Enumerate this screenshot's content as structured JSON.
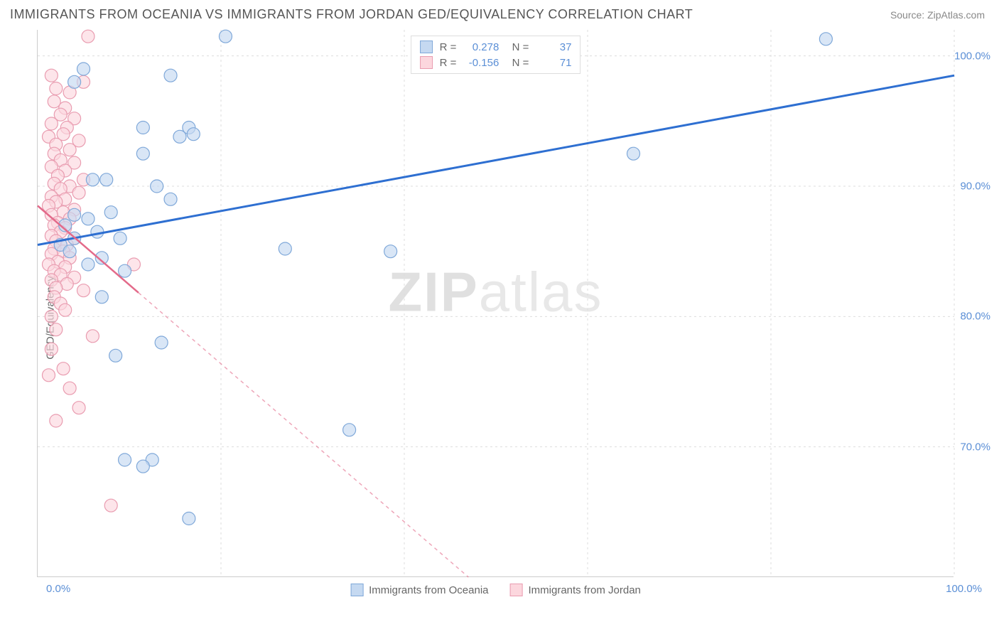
{
  "title": "IMMIGRANTS FROM OCEANIA VS IMMIGRANTS FROM JORDAN GED/EQUIVALENCY CORRELATION CHART",
  "source_label": "Source: ZipAtlas.com",
  "watermark": {
    "zip": "ZIP",
    "atlas": "atlas"
  },
  "chart": {
    "type": "scatter",
    "ylabel": "GED/Equivalency",
    "xlim": [
      0,
      100
    ],
    "ylim": [
      60,
      102
    ],
    "x_ticks": [
      "0.0%",
      "100.0%"
    ],
    "y_ticks": [
      {
        "value": 100,
        "label": "100.0%"
      },
      {
        "value": 90,
        "label": "90.0%"
      },
      {
        "value": 80,
        "label": "80.0%"
      },
      {
        "value": 70,
        "label": "70.0%"
      }
    ],
    "x_gridlines": [
      20,
      40,
      60,
      80,
      100
    ],
    "y_gridlines": [
      70,
      80,
      90,
      100
    ],
    "background_color": "#ffffff",
    "grid_color": "#dddddd",
    "axis_color": "#cccccc",
    "tick_color": "#5b8fd6",
    "series": [
      {
        "name": "Immigrants from Oceania",
        "color_fill": "#c5d9f1",
        "color_stroke": "#7fa8d9",
        "marker_radius": 9,
        "marker_opacity": 0.65,
        "trend": {
          "x1": 0,
          "y1": 85.5,
          "x2": 100,
          "y2": 98.5,
          "color": "#2e6fd1",
          "width": 3,
          "dash": "none"
        },
        "stats": {
          "R": "0.278",
          "N": "37"
        },
        "points": [
          [
            20.5,
            101.5
          ],
          [
            86.0,
            101.3
          ],
          [
            5.0,
            99.0
          ],
          [
            4.0,
            98.0
          ],
          [
            14.5,
            98.5
          ],
          [
            11.5,
            94.5
          ],
          [
            16.5,
            94.5
          ],
          [
            17.0,
            94.0
          ],
          [
            15.5,
            93.8
          ],
          [
            11.5,
            92.5
          ],
          [
            65.0,
            92.5
          ],
          [
            6.0,
            90.5
          ],
          [
            7.5,
            90.5
          ],
          [
            13.0,
            90.0
          ],
          [
            14.5,
            89.0
          ],
          [
            8.0,
            88.0
          ],
          [
            4.0,
            87.8
          ],
          [
            5.5,
            87.5
          ],
          [
            3.0,
            87.0
          ],
          [
            6.5,
            86.5
          ],
          [
            4.0,
            86.0
          ],
          [
            9.0,
            86.0
          ],
          [
            2.5,
            85.5
          ],
          [
            3.5,
            85.0
          ],
          [
            7.0,
            84.5
          ],
          [
            27.0,
            85.2
          ],
          [
            38.5,
            85.0
          ],
          [
            9.5,
            83.5
          ],
          [
            7.0,
            81.5
          ],
          [
            13.5,
            78.0
          ],
          [
            8.5,
            77.0
          ],
          [
            34.0,
            71.3
          ],
          [
            9.5,
            69.0
          ],
          [
            12.5,
            69.0
          ],
          [
            11.5,
            68.5
          ],
          [
            16.5,
            64.5
          ],
          [
            5.5,
            84.0
          ]
        ]
      },
      {
        "name": "Immigrants from Jordan",
        "color_fill": "#fcd7de",
        "color_stroke": "#e99cb0",
        "marker_radius": 9,
        "marker_opacity": 0.65,
        "trend": {
          "x1": 0,
          "y1": 88.5,
          "x2": 47,
          "y2": 60.0,
          "color": "#e36a8a",
          "width": 1.5,
          "dash": "5,5",
          "solid_until_x": 11
        },
        "stats": {
          "R": "-0.156",
          "N": "71"
        },
        "points": [
          [
            5.5,
            101.5
          ],
          [
            1.5,
            98.5
          ],
          [
            5.0,
            98.0
          ],
          [
            2.0,
            97.5
          ],
          [
            3.5,
            97.2
          ],
          [
            1.8,
            96.5
          ],
          [
            3.0,
            96.0
          ],
          [
            2.5,
            95.5
          ],
          [
            4.0,
            95.2
          ],
          [
            1.5,
            94.8
          ],
          [
            3.2,
            94.5
          ],
          [
            2.8,
            94.0
          ],
          [
            1.2,
            93.8
          ],
          [
            4.5,
            93.5
          ],
          [
            2.0,
            93.2
          ],
          [
            3.5,
            92.8
          ],
          [
            1.8,
            92.5
          ],
          [
            2.5,
            92.0
          ],
          [
            4.0,
            91.8
          ],
          [
            1.5,
            91.5
          ],
          [
            3.0,
            91.2
          ],
          [
            2.2,
            90.8
          ],
          [
            5.0,
            90.5
          ],
          [
            1.8,
            90.2
          ],
          [
            3.5,
            90.0
          ],
          [
            2.5,
            89.8
          ],
          [
            4.5,
            89.5
          ],
          [
            1.5,
            89.2
          ],
          [
            3.0,
            89.0
          ],
          [
            2.0,
            88.8
          ],
          [
            1.2,
            88.5
          ],
          [
            4.0,
            88.2
          ],
          [
            2.8,
            88.0
          ],
          [
            1.5,
            87.8
          ],
          [
            3.5,
            87.5
          ],
          [
            2.2,
            87.2
          ],
          [
            1.8,
            87.0
          ],
          [
            3.0,
            86.8
          ],
          [
            2.5,
            86.5
          ],
          [
            1.5,
            86.2
          ],
          [
            4.0,
            86.0
          ],
          [
            2.0,
            85.8
          ],
          [
            3.2,
            85.5
          ],
          [
            1.8,
            85.2
          ],
          [
            2.8,
            85.0
          ],
          [
            1.5,
            84.8
          ],
          [
            3.5,
            84.5
          ],
          [
            2.2,
            84.2
          ],
          [
            1.2,
            84.0
          ],
          [
            10.5,
            84.0
          ],
          [
            3.0,
            83.8
          ],
          [
            1.8,
            83.5
          ],
          [
            2.5,
            83.2
          ],
          [
            4.0,
            83.0
          ],
          [
            1.5,
            82.8
          ],
          [
            3.2,
            82.5
          ],
          [
            2.0,
            82.2
          ],
          [
            5.0,
            82.0
          ],
          [
            1.8,
            81.5
          ],
          [
            2.5,
            81.0
          ],
          [
            3.0,
            80.5
          ],
          [
            1.5,
            80.0
          ],
          [
            6.0,
            78.5
          ],
          [
            2.0,
            79.0
          ],
          [
            1.2,
            75.5
          ],
          [
            4.5,
            73.0
          ],
          [
            8.0,
            65.5
          ],
          [
            1.5,
            77.5
          ],
          [
            2.8,
            76.0
          ],
          [
            3.5,
            74.5
          ],
          [
            2.0,
            72.0
          ]
        ]
      }
    ],
    "bottom_legend": [
      {
        "label": "Immigrants from Oceania",
        "fill": "#c5d9f1",
        "stroke": "#7fa8d9"
      },
      {
        "label": "Immigrants from Jordan",
        "fill": "#fcd7de",
        "stroke": "#e99cb0"
      }
    ]
  }
}
